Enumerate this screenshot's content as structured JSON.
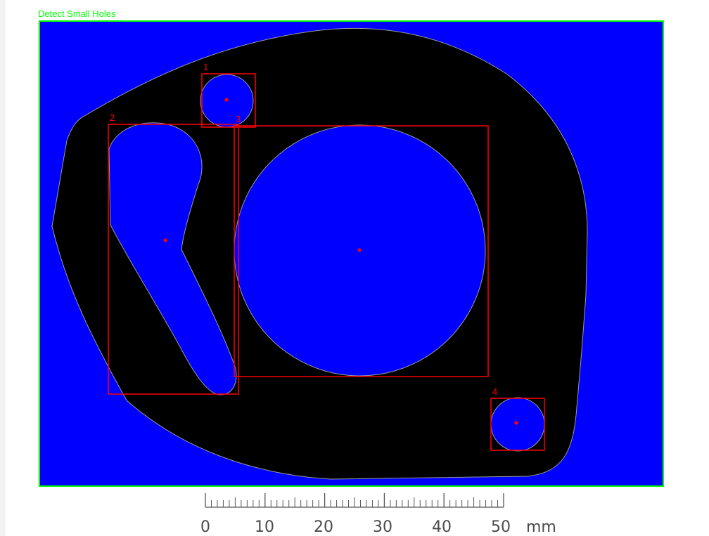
{
  "inspection": {
    "roi_label": "Detect Small Holes",
    "roi_color": "#00ff00",
    "background_color": "#0000ff",
    "part_color": "#000000",
    "marker_color": "#ff0000"
  },
  "blobs": [
    {
      "label": "1"
    },
    {
      "label": "2"
    },
    {
      "label": "3"
    },
    {
      "label": "4"
    }
  ],
  "scale_bar": {
    "labels": [
      "0",
      "10",
      "20",
      "30",
      "40",
      "50"
    ],
    "unit": "mm",
    "minor_ticks_per_label": 10
  }
}
